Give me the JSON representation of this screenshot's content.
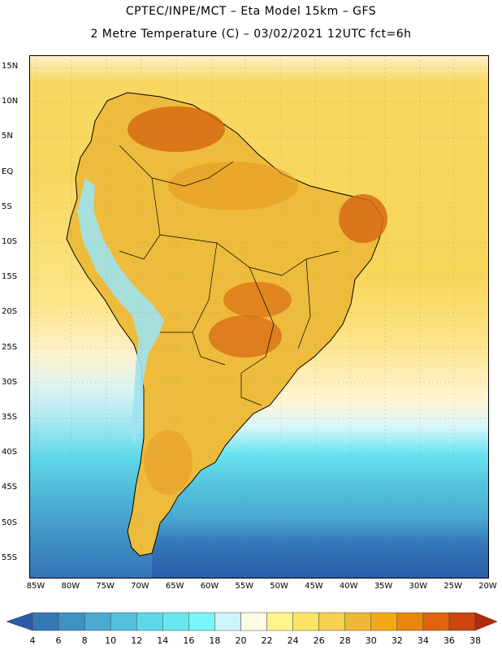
{
  "header": {
    "line1": "CPTEC/INPE/MCT –  Eta Model 15km – GFS",
    "line2": "2 Metre Temperature (C) – 03/02/2021 12UTC fct=6h"
  },
  "latitude_labels": [
    "15N",
    "10N",
    "5N",
    "EQ",
    "5S",
    "10S",
    "15S",
    "20S",
    "25S",
    "30S",
    "35S",
    "40S",
    "45S",
    "50S",
    "55S"
  ],
  "longitude_labels": [
    "85W",
    "80W",
    "75W",
    "70W",
    "65W",
    "60W",
    "55W",
    "50W",
    "45W",
    "40W",
    "35W",
    "30W",
    "25W",
    "20W"
  ],
  "colorbar": {
    "labels": [
      "4",
      "6",
      "8",
      "10",
      "12",
      "14",
      "16",
      "18",
      "20",
      "22",
      "24",
      "26",
      "28",
      "30",
      "32",
      "34",
      "36",
      "38"
    ],
    "colors": [
      "#2a5aa8",
      "#3478b8",
      "#3f92c6",
      "#4aaad2",
      "#55c0dc",
      "#5ed8e8",
      "#6ae6f0",
      "#78f5f8",
      "#cdf5fc",
      "#fffae6",
      "#fff48c",
      "#fce464",
      "#f6d050",
      "#eeb836",
      "#f0a818",
      "#e8860e",
      "#e06410",
      "#cc4410",
      "#b02c0a"
    ]
  },
  "map": {
    "region": "South America",
    "ocean_warm_color": "#f7d864",
    "ocean_cold_color": "#2a5aa8",
    "land_color": "#eeb836",
    "hot_color": "#d86410",
    "andes_color": "#9fe6f0"
  }
}
